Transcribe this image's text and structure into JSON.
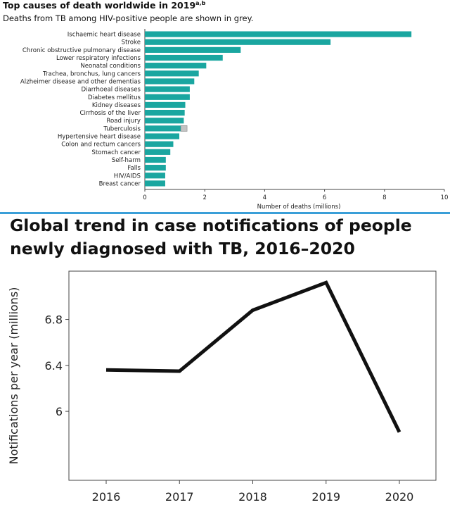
{
  "chart_data": [
    {
      "type": "bar",
      "orientation": "horizontal",
      "title": "Top causes of death worldwide in 2019",
      "title_superscript": "a,b",
      "subtitle": "Deaths from TB among HIV-positive people are shown in grey.",
      "categories": [
        "Ischaemic heart disease",
        "Stroke",
        "Chronic obstructive pulmonary disease",
        "Lower respiratory infections",
        "Neonatal conditions",
        "Trachea, bronchus, lung cancers",
        "Alzheimer disease and other dementias",
        "Diarrhoeal diseases",
        "Diabetes mellitus",
        "Kidney diseases",
        "Cirrhosis of the liver",
        "Road injury",
        "Tuberculosis",
        "Hypertensive heart disease",
        "Colon and rectum cancers",
        "Stomach cancer",
        "Self-harm",
        "Falls",
        "HIV/AIDS",
        "Breast cancer"
      ],
      "series": [
        {
          "name": "Deaths",
          "color": "#1aa6a0",
          "values": [
            8.9,
            6.2,
            3.2,
            2.6,
            2.05,
            1.8,
            1.65,
            1.5,
            1.5,
            1.35,
            1.33,
            1.3,
            1.2,
            1.15,
            0.95,
            0.85,
            0.7,
            0.7,
            0.68,
            0.68
          ]
        },
        {
          "name": "TB deaths among HIV-positive people",
          "color": "#c3c3c3",
          "values": [
            0,
            0,
            0,
            0,
            0,
            0,
            0,
            0,
            0,
            0,
            0,
            0,
            0.21,
            0,
            0,
            0,
            0,
            0,
            0,
            0
          ]
        }
      ],
      "xlabel": "Number of deaths (millions)",
      "ylabel": "",
      "xlim": [
        0,
        10
      ],
      "xticks": [
        "0",
        "2",
        "4",
        "6",
        "8",
        "10"
      ]
    },
    {
      "type": "line",
      "title": "Global trend in case notifications of people newly diagnosed with TB, 2016–2020",
      "x": [
        "2016",
        "2017",
        "2018",
        "2019",
        "2020"
      ],
      "series": [
        {
          "name": "Notifications",
          "color": "#111111",
          "values": [
            6.36,
            6.35,
            6.88,
            7.12,
            5.82
          ]
        }
      ],
      "xlabel": "",
      "ylabel": "Notifications per year (millions)",
      "ylim": [
        5.4,
        7.22
      ],
      "yticks": [
        6,
        6.4,
        6.8
      ],
      "ytick_labels": [
        "6",
        "6.4",
        "6.8"
      ]
    }
  ],
  "colors": {
    "divider": "#3a9fd8",
    "bar": "#1aa6a0",
    "hiv_tb": "#c3c3c3",
    "line": "#111111"
  }
}
